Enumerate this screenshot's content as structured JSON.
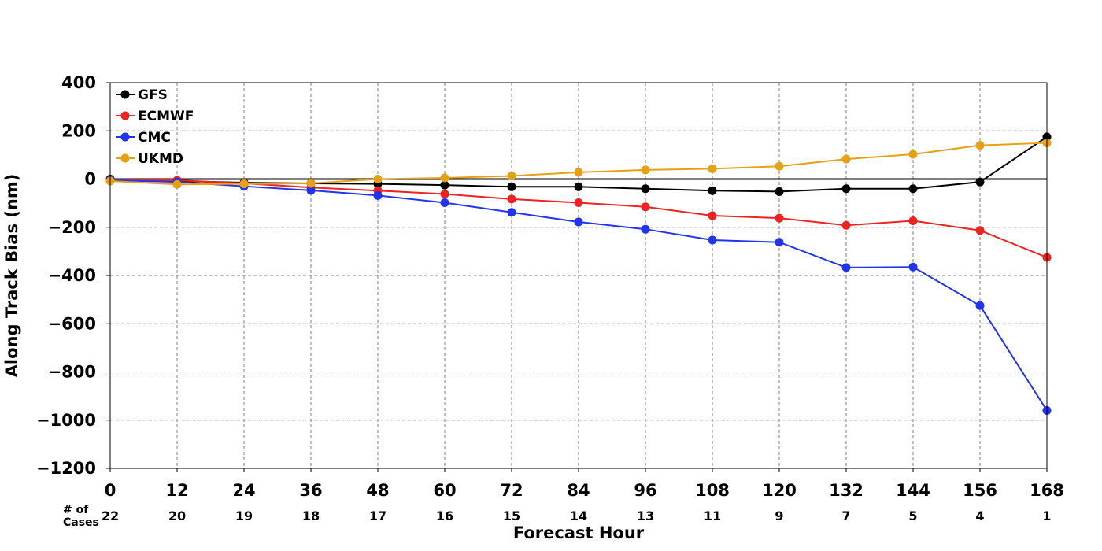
{
  "chart_data": {
    "type": "line",
    "xlabel": "Forecast Hour",
    "ylabel": "Along Track Bias (nm)",
    "ylim": [
      -1200,
      400
    ],
    "xlim": [
      0,
      168
    ],
    "y_ticks": [
      400,
      200,
      0,
      -200,
      -400,
      -600,
      -800,
      -1000,
      -1200
    ],
    "x": [
      0,
      12,
      24,
      36,
      48,
      60,
      72,
      84,
      96,
      108,
      120,
      132,
      144,
      156,
      168
    ],
    "cases_label": [
      "# of",
      "Cases"
    ],
    "cases": [
      22,
      20,
      19,
      18,
      17,
      16,
      15,
      14,
      13,
      11,
      9,
      7,
      5,
      4,
      1
    ],
    "grid": true,
    "legend_position": "top-left",
    "series": [
      {
        "name": "GFS",
        "color": "#000000",
        "values": [
          0,
          -8,
          -15,
          -18,
          -20,
          -25,
          -32,
          -32,
          -40,
          -48,
          -52,
          -40,
          -40,
          -12,
          175
        ]
      },
      {
        "name": "ECMWF",
        "color": "#ee2222",
        "values": [
          -5,
          -5,
          -18,
          -35,
          -48,
          -62,
          -83,
          -98,
          -115,
          -152,
          -162,
          -192,
          -173,
          -213,
          -325
        ]
      },
      {
        "name": "CMC",
        "color": "#2233ee",
        "values": [
          -5,
          -12,
          -30,
          -47,
          -68,
          -98,
          -138,
          -178,
          -208,
          -253,
          -262,
          -367,
          -365,
          -525,
          -960
        ]
      },
      {
        "name": "UKMD",
        "color": "#e6a015",
        "values": [
          -8,
          -22,
          -20,
          -18,
          0,
          5,
          13,
          28,
          38,
          43,
          53,
          83,
          103,
          140,
          150
        ]
      }
    ]
  }
}
